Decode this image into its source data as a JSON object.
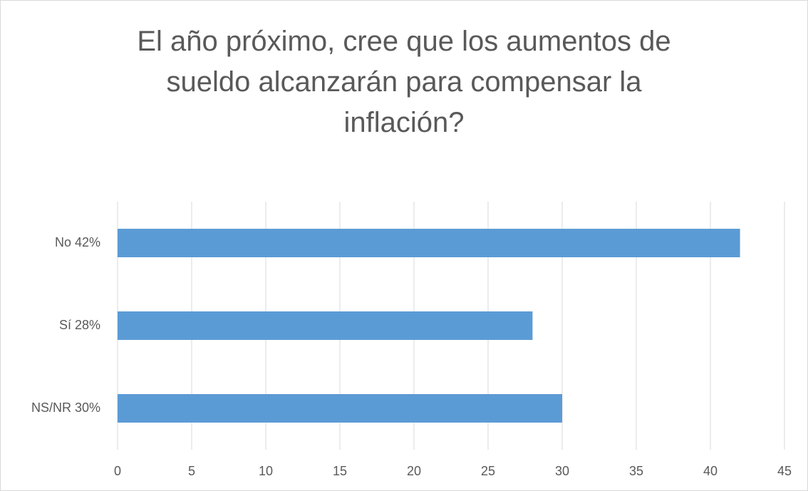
{
  "chart_data": {
    "type": "bar",
    "orientation": "horizontal",
    "title": "El año próximo, cree que los aumentos de sueldo alcanzarán para compensar la inflación?",
    "categories": [
      "No 42%",
      "Sí 28%",
      "NS/NR 30%"
    ],
    "values": [
      42,
      28,
      30
    ],
    "color": "#5b9bd5",
    "xlim": [
      0,
      45
    ],
    "xticks": [
      0,
      5,
      10,
      15,
      20,
      25,
      30,
      35,
      40,
      45
    ],
    "grid": true
  }
}
